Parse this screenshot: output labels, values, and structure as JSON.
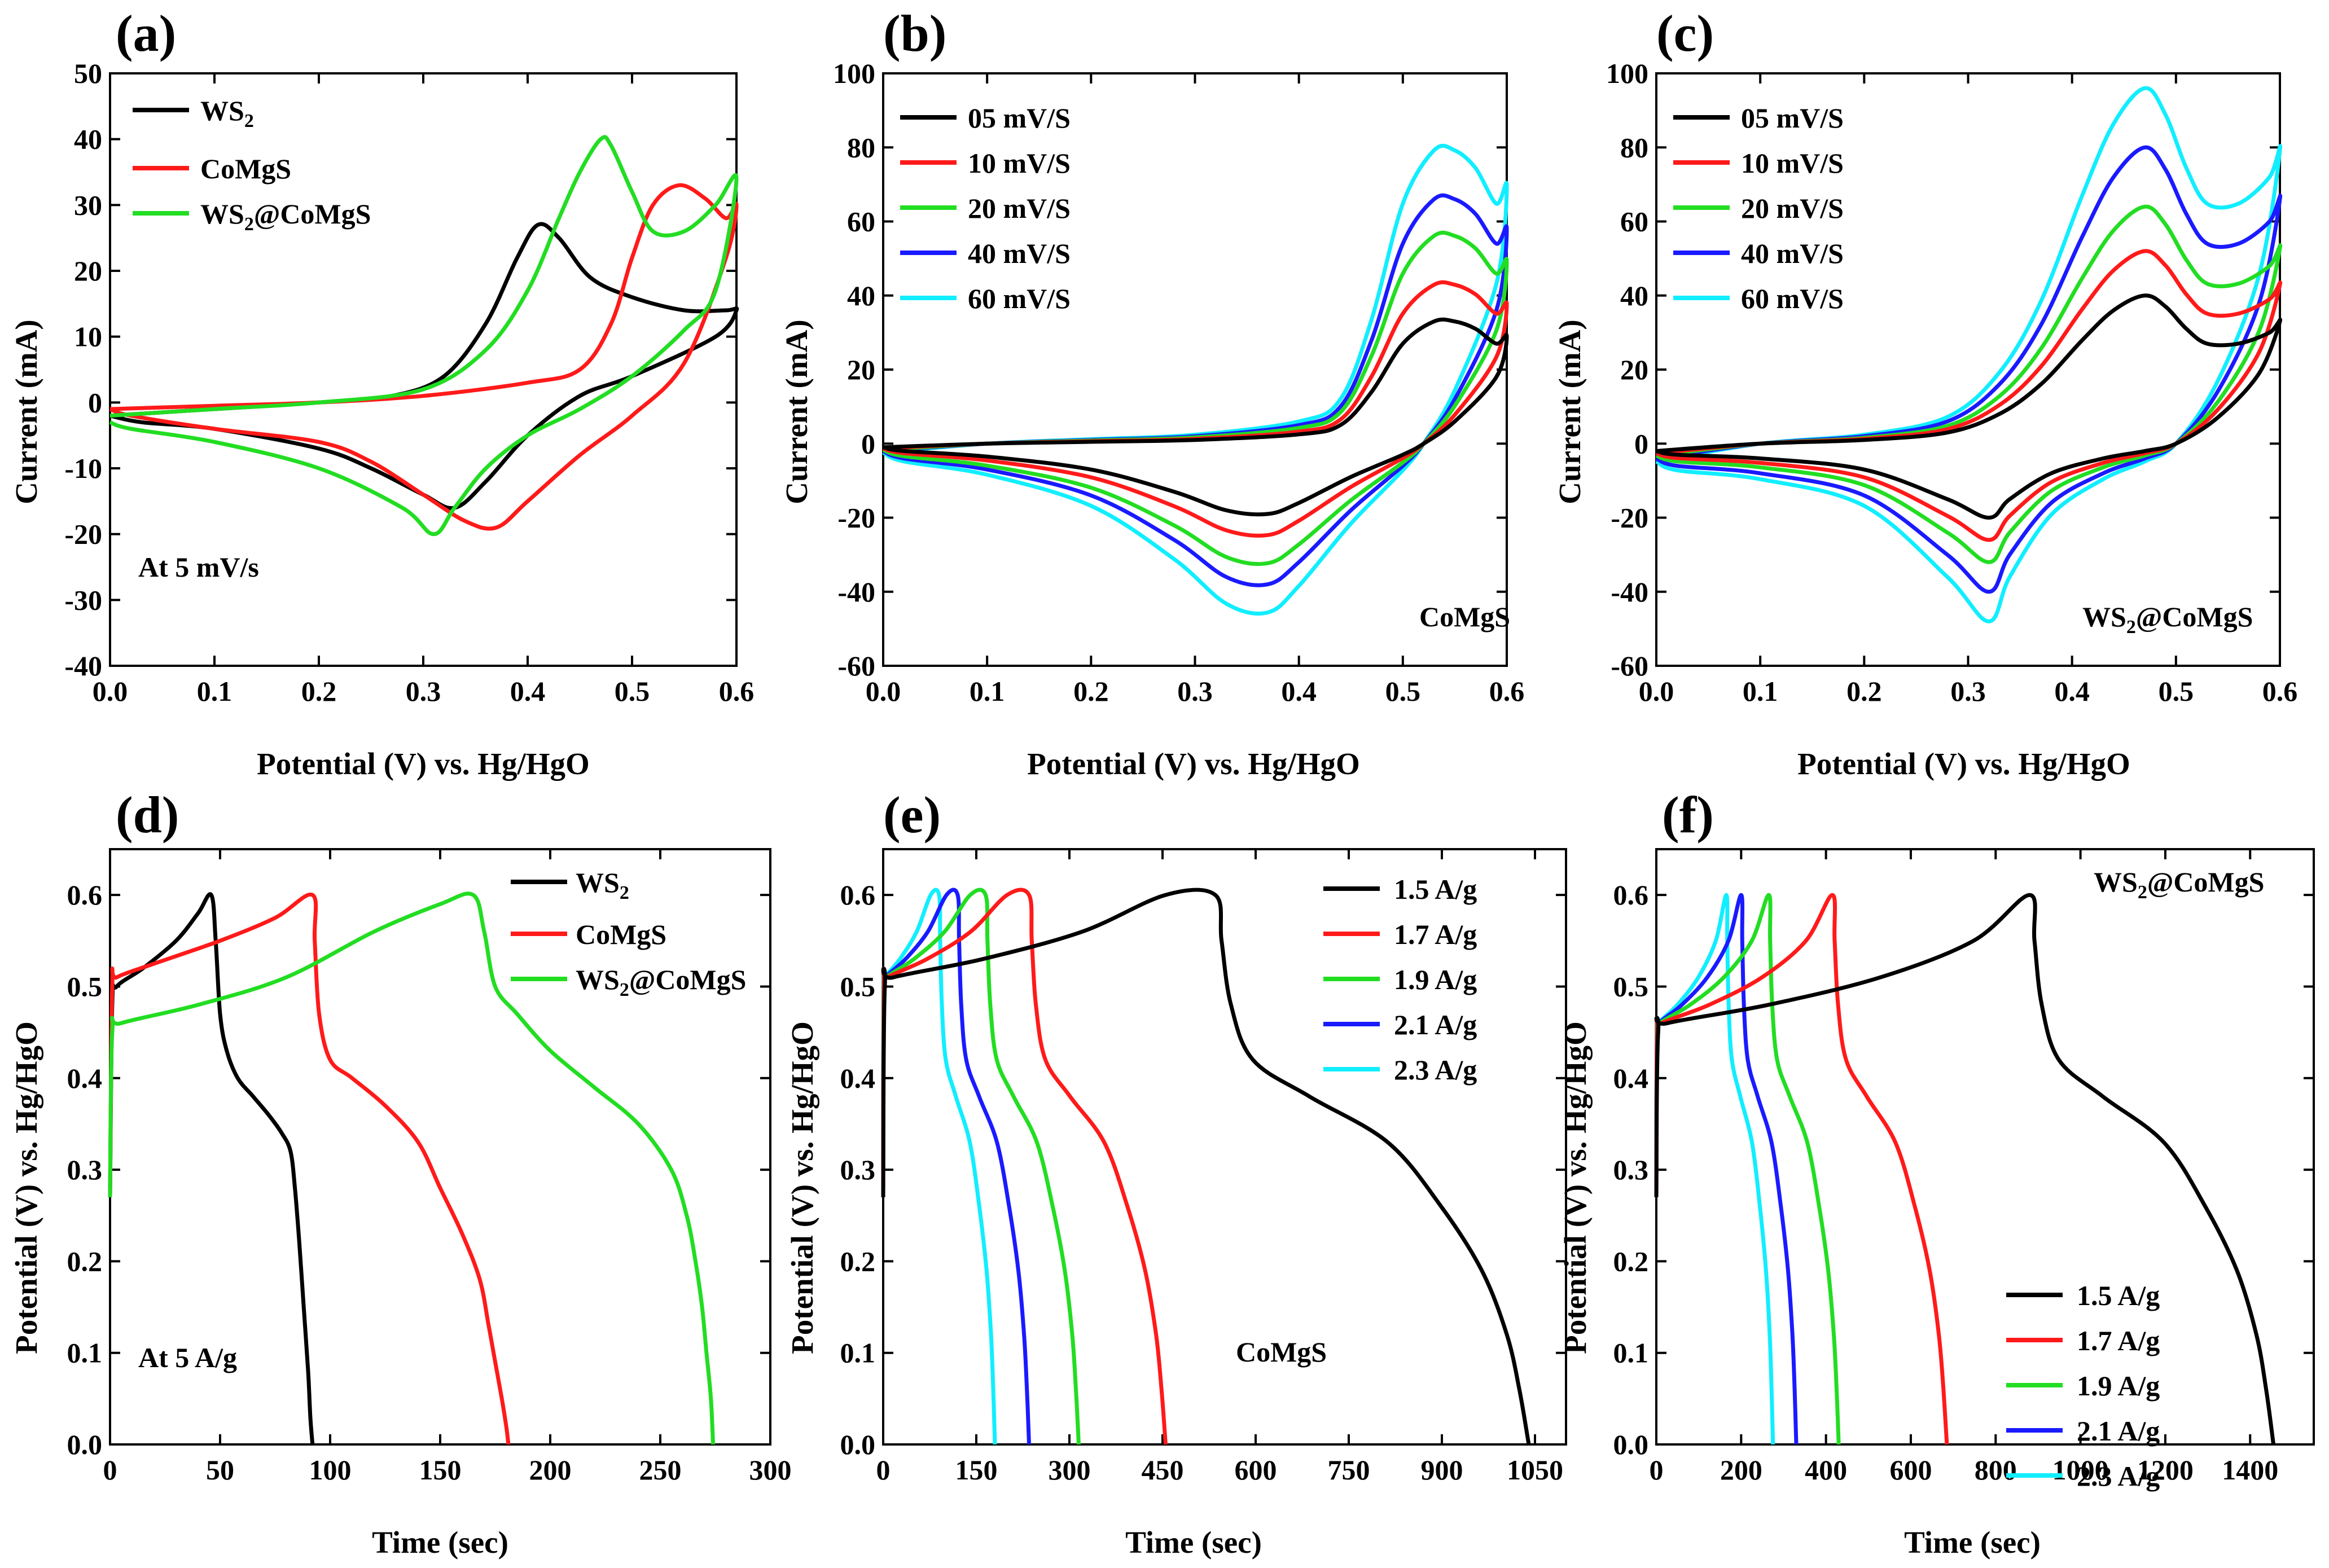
{
  "figure": {
    "panels": [
      {
        "id": "a",
        "label": "(a)",
        "xlim": [
          0,
          0.6
        ],
        "ylim": [
          -40,
          50
        ],
        "xticks": [
          0,
          0.1,
          0.2,
          0.3,
          0.4,
          0.5,
          0.6
        ],
        "yticks": [
          -40,
          -30,
          -20,
          -10,
          0,
          10,
          20,
          30,
          40,
          50
        ],
        "xlabel": "Potential (V) vs. Hg/HgO",
        "ylabel": "Current (mA)",
        "annotation": "At 5 mV/s"
      },
      {
        "id": "b",
        "label": "(b)",
        "xlim": [
          0,
          0.6
        ],
        "ylim": [
          -60,
          100
        ],
        "xticks": [
          0,
          0.1,
          0.2,
          0.3,
          0.4,
          0.5,
          0.6
        ],
        "yticks": [
          -60,
          -40,
          -20,
          0,
          20,
          40,
          60,
          80,
          100
        ],
        "xlabel": "Potential (V) vs. Hg/HgO",
        "ylabel": "Current (mA)",
        "annotation": "CoMgS"
      },
      {
        "id": "c",
        "label": "(c)",
        "xlim": [
          0,
          0.6
        ],
        "ylim": [
          -60,
          100
        ],
        "xticks": [
          0,
          0.1,
          0.2,
          0.3,
          0.4,
          0.5,
          0.6
        ],
        "yticks": [
          -60,
          -40,
          -20,
          0,
          20,
          40,
          60,
          80,
          100
        ],
        "xlabel": "Potential (V) vs. Hg/HgO",
        "ylabel": "Current (mA)",
        "annotation": "WS₂@CoMgS"
      },
      {
        "id": "d",
        "label": "(d)",
        "xlim": [
          0,
          300
        ],
        "ylim": [
          0,
          0.65
        ],
        "xticks": [
          0,
          50,
          100,
          150,
          200,
          250,
          300
        ],
        "yticks": [
          0,
          0.1,
          0.2,
          0.3,
          0.4,
          0.5,
          0.6
        ],
        "xlabel": "Time (sec)",
        "ylabel": "Potential (V) vs. Hg/HgO",
        "annotation": "At 5 A/g"
      },
      {
        "id": "e",
        "label": "(e)",
        "xlim": [
          0,
          1100
        ],
        "ylim": [
          0,
          0.65
        ],
        "xticks": [
          0,
          150,
          300,
          450,
          600,
          750,
          900,
          1050
        ],
        "yticks": [
          0,
          0.1,
          0.2,
          0.3,
          0.4,
          0.5,
          0.6
        ],
        "xlabel": "Time (sec)",
        "ylabel": "Potential (V) vs. Hg/HgO",
        "annotation": "CoMgS"
      },
      {
        "id": "f",
        "label": "(f)",
        "xlim": [
          0,
          1550
        ],
        "ylim": [
          0,
          0.65
        ],
        "xticks": [
          0,
          200,
          400,
          600,
          800,
          1000,
          1200,
          1400
        ],
        "yticks": [
          0,
          0.1,
          0.2,
          0.3,
          0.4,
          0.5,
          0.6
        ],
        "xlabel": "Time (sec)",
        "ylabel": "Potential (V) vs. Hg/HgO",
        "annotation": "WS₂@CoMgS"
      }
    ],
    "colors": {
      "black": "#000000",
      "red": "#ff1a1a",
      "green": "#22dd22",
      "blue": "#1a1aff",
      "cyan": "#11eeff"
    }
  },
  "chart_data": [
    {
      "type": "line",
      "panel": "a",
      "title": "(a)",
      "xlabel": "Potential (V) vs. Hg/HgO",
      "ylabel": "Current (mA)",
      "xlim": [
        0,
        0.6
      ],
      "ylim": [
        -40,
        50
      ],
      "annotation": "At 5 mV/s",
      "series": [
        {
          "name": "WS₂",
          "color": "#000000",
          "x": [
            0,
            0.1,
            0.2,
            0.27,
            0.32,
            0.36,
            0.39,
            0.41,
            0.43,
            0.46,
            0.5,
            0.55,
            0.59,
            0.6,
            0.58,
            0.5,
            0.45,
            0.4,
            0.36,
            0.33,
            0.3,
            0.25,
            0.2,
            0.1,
            0.03,
            0
          ],
          "y": [
            -2,
            -1,
            0,
            1,
            4,
            12,
            22,
            27,
            25,
            19,
            16,
            14,
            14,
            14,
            10,
            4,
            1,
            -5,
            -12,
            -16,
            -14,
            -10,
            -7,
            -4,
            -3,
            -2
          ]
        },
        {
          "name": "CoMgS",
          "color": "#ff1a1a",
          "x": [
            0,
            0.1,
            0.2,
            0.3,
            0.4,
            0.45,
            0.48,
            0.5,
            0.52,
            0.545,
            0.57,
            0.59,
            0.6,
            0.59,
            0.55,
            0.5,
            0.45,
            0.4,
            0.37,
            0.34,
            0.3,
            0.25,
            0.2,
            0.1,
            0.02,
            0
          ],
          "y": [
            -1,
            -0.5,
            0,
            1,
            3,
            5,
            12,
            22,
            30,
            33,
            31,
            28,
            30,
            22,
            6,
            -2,
            -8,
            -15,
            -19,
            -18,
            -14,
            -9,
            -6,
            -4,
            -2,
            -1
          ]
        },
        {
          "name": "WS₂@CoMgS",
          "color": "#22dd22",
          "x": [
            0,
            0.1,
            0.2,
            0.3,
            0.36,
            0.4,
            0.43,
            0.45,
            0.47,
            0.48,
            0.5,
            0.52,
            0.55,
            0.58,
            0.6,
            0.58,
            0.55,
            0.5,
            0.45,
            0.4,
            0.36,
            0.33,
            0.31,
            0.28,
            0.2,
            0.1,
            0.02,
            0
          ],
          "y": [
            -2,
            -1,
            0,
            2,
            8,
            17,
            28,
            35,
            40,
            39,
            32,
            26,
            26,
            30,
            34,
            17,
            11,
            4,
            -1,
            -5,
            -10,
            -16,
            -20,
            -16,
            -10,
            -6,
            -4,
            -3
          ]
        }
      ]
    },
    {
      "type": "line",
      "panel": "b",
      "title": "(b)",
      "xlabel": "Potential (V) vs. Hg/HgO",
      "ylabel": "Current (mA)",
      "xlim": [
        0,
        0.6
      ],
      "ylim": [
        -60,
        100
      ],
      "annotation": "CoMgS",
      "series": [
        {
          "name": "05 mV/S",
          "color": "#000000",
          "scale": 1.0
        },
        {
          "name": "10 mV/S",
          "color": "#ff1a1a",
          "scale": 1.3
        },
        {
          "name": "20 mV/S",
          "color": "#22dd22",
          "scale": 1.7
        },
        {
          "name": "40 mV/S",
          "color": "#1a1aff",
          "scale": 2.0
        },
        {
          "name": "60 mV/S",
          "color": "#11eeff",
          "scale": 2.4
        }
      ],
      "base_x": [
        0,
        0.1,
        0.2,
        0.3,
        0.4,
        0.44,
        0.47,
        0.5,
        0.53,
        0.55,
        0.57,
        0.59,
        0.6,
        0.59,
        0.55,
        0.52,
        0.5,
        0.45,
        0.4,
        0.37,
        0.33,
        0.28,
        0.2,
        0.1,
        0.02,
        0
      ],
      "base_y": [
        -1,
        0,
        0.5,
        1,
        2.5,
        5,
        14,
        27,
        33,
        33,
        31,
        27,
        29,
        18,
        6,
        0,
        -3,
        -9,
        -16,
        -19,
        -18,
        -13,
        -7,
        -3.5,
        -2,
        -1
      ]
    },
    {
      "type": "line",
      "panel": "c",
      "title": "(c)",
      "xlabel": "Potential (V) vs. Hg/HgO",
      "ylabel": "Current (mA)",
      "xlim": [
        0,
        0.6
      ],
      "ylim": [
        -60,
        100
      ],
      "annotation": "WS₂@CoMgS",
      "series": [
        {
          "name": "05 mV/S",
          "color": "#000000",
          "scale": 1.0
        },
        {
          "name": "10 mV/S",
          "color": "#ff1a1a",
          "scale": 1.3
        },
        {
          "name": "20 mV/S",
          "color": "#22dd22",
          "scale": 1.6
        },
        {
          "name": "40 mV/S",
          "color": "#1a1aff",
          "scale": 2.0
        },
        {
          "name": "60 mV/S",
          "color": "#11eeff",
          "scale": 2.4
        }
      ],
      "base_x": [
        0,
        0.1,
        0.2,
        0.28,
        0.33,
        0.37,
        0.41,
        0.44,
        0.47,
        0.49,
        0.51,
        0.53,
        0.56,
        0.59,
        0.6,
        0.58,
        0.54,
        0.5,
        0.47,
        0.43,
        0.38,
        0.34,
        0.32,
        0.28,
        0.2,
        0.1,
        0.02,
        0
      ],
      "base_y": [
        -2,
        0,
        1,
        3,
        8,
        16,
        28,
        36,
        40,
        37,
        31,
        27,
        27,
        30,
        33,
        19,
        7,
        0,
        -2,
        -4,
        -8,
        -15,
        -20,
        -15,
        -7,
        -4,
        -3,
        -2
      ]
    },
    {
      "type": "line",
      "panel": "d",
      "title": "(d)",
      "xlabel": "Time (sec)",
      "ylabel": "Potential (V) vs. Hg/HgO",
      "xlim": [
        0,
        300
      ],
      "ylim": [
        0,
        0.65
      ],
      "annotation": "At 5 A/g",
      "series": [
        {
          "name": "WS₂",
          "color": "#000000",
          "x": [
            0,
            1,
            3,
            15,
            30,
            40,
            46,
            48,
            50,
            53,
            58,
            65,
            72,
            78,
            82,
            84,
            86,
            88,
            90,
            91,
            92
          ],
          "y": [
            0.27,
            0.48,
            0.5,
            0.52,
            0.55,
            0.58,
            0.6,
            0.55,
            0.47,
            0.43,
            0.4,
            0.38,
            0.36,
            0.34,
            0.32,
            0.28,
            0.22,
            0.15,
            0.08,
            0.03,
            0
          ]
        },
        {
          "name": "CoMgS",
          "color": "#ff1a1a",
          "x": [
            0,
            1,
            3,
            20,
            50,
            75,
            92,
            93,
            95,
            100,
            110,
            125,
            140,
            150,
            160,
            168,
            172,
            175,
            178,
            180,
            181
          ],
          "y": [
            0.27,
            0.5,
            0.51,
            0.525,
            0.55,
            0.575,
            0.6,
            0.55,
            0.47,
            0.42,
            0.4,
            0.37,
            0.33,
            0.28,
            0.23,
            0.18,
            0.13,
            0.09,
            0.05,
            0.02,
            0
          ]
        },
        {
          "name": "WS₂@CoMgS",
          "color": "#22dd22",
          "x": [
            0,
            1,
            5,
            40,
            80,
            120,
            150,
            165,
            170,
            175,
            185,
            200,
            220,
            240,
            255,
            262,
            266,
            269,
            271,
            273,
            274
          ],
          "y": [
            0.27,
            0.45,
            0.46,
            0.48,
            0.51,
            0.56,
            0.59,
            0.6,
            0.56,
            0.5,
            0.47,
            0.43,
            0.39,
            0.35,
            0.3,
            0.25,
            0.2,
            0.15,
            0.1,
            0.05,
            0
          ]
        }
      ]
    },
    {
      "type": "line",
      "panel": "e",
      "title": "(e)",
      "xlabel": "Time (sec)",
      "ylabel": "Potential (V) vs. Hg/HgO",
      "xlim": [
        0,
        1100
      ],
      "ylim": [
        0,
        0.65
      ],
      "annotation": "CoMgS",
      "series": [
        {
          "name": "1.5 A/g",
          "color": "#000000",
          "peak": 535,
          "end": 1040
        },
        {
          "name": "1.7 A/g",
          "color": "#ff1a1a",
          "peak": 235,
          "end": 455
        },
        {
          "name": "1.9 A/g",
          "color": "#22dd22",
          "peak": 165,
          "end": 315
        },
        {
          "name": "2.1 A/g",
          "color": "#1a1aff",
          "peak": 120,
          "end": 235
        },
        {
          "name": "2.3 A/g",
          "color": "#11eeff",
          "peak": 90,
          "end": 180
        }
      ]
    },
    {
      "type": "line",
      "panel": "f",
      "title": "(f)",
      "xlabel": "Time (sec)",
      "ylabel": "Potential (V) vs. Hg/HgO",
      "xlim": [
        0,
        1550
      ],
      "ylim": [
        0,
        0.65
      ],
      "annotation": "WS₂@CoMgS",
      "series": [
        {
          "name": "1.5 A/g",
          "color": "#000000",
          "peak": 880,
          "end": 1455
        },
        {
          "name": "1.7 A/g",
          "color": "#ff1a1a",
          "peak": 415,
          "end": 685
        },
        {
          "name": "1.9 A/g",
          "color": "#22dd22",
          "peak": 265,
          "end": 430
        },
        {
          "name": "2.1 A/g",
          "color": "#1a1aff",
          "peak": 200,
          "end": 330
        },
        {
          "name": "2.3 A/g",
          "color": "#11eeff",
          "peak": 165,
          "end": 275
        }
      ]
    }
  ]
}
